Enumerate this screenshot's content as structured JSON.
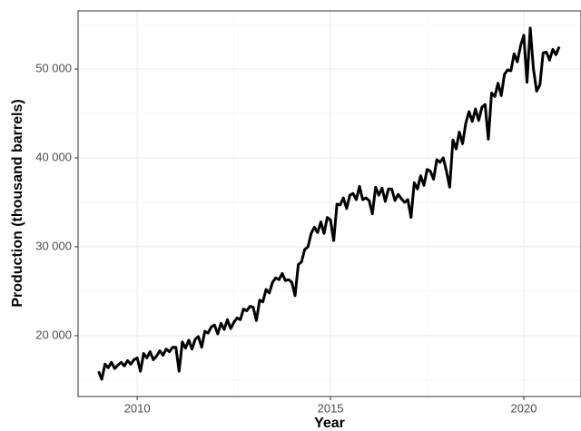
{
  "chart_data": {
    "type": "line",
    "x_label": "Year",
    "y_label": "Production (thousand barrels)",
    "x": [
      2009,
      2009.083,
      2009.167,
      2009.25,
      2009.333,
      2009.417,
      2009.5,
      2009.583,
      2009.667,
      2009.75,
      2009.833,
      2009.917,
      2010,
      2010.083,
      2010.167,
      2010.25,
      2010.333,
      2010.417,
      2010.5,
      2010.583,
      2010.667,
      2010.75,
      2010.833,
      2010.917,
      2011,
      2011.083,
      2011.167,
      2011.25,
      2011.333,
      2011.417,
      2011.5,
      2011.583,
      2011.667,
      2011.75,
      2011.833,
      2011.917,
      2012,
      2012.083,
      2012.167,
      2012.25,
      2012.333,
      2012.417,
      2012.5,
      2012.583,
      2012.667,
      2012.75,
      2012.833,
      2012.917,
      2013,
      2013.083,
      2013.167,
      2013.25,
      2013.333,
      2013.417,
      2013.5,
      2013.583,
      2013.667,
      2013.75,
      2013.833,
      2013.917,
      2014,
      2014.083,
      2014.167,
      2014.25,
      2014.333,
      2014.417,
      2014.5,
      2014.583,
      2014.667,
      2014.75,
      2014.833,
      2014.917,
      2015,
      2015.083,
      2015.167,
      2015.25,
      2015.333,
      2015.417,
      2015.5,
      2015.583,
      2015.667,
      2015.75,
      2015.833,
      2015.917,
      2016,
      2016.083,
      2016.167,
      2016.25,
      2016.333,
      2016.417,
      2016.5,
      2016.583,
      2016.667,
      2016.75,
      2016.833,
      2016.917,
      2017,
      2017.083,
      2017.167,
      2017.25,
      2017.333,
      2017.417,
      2017.5,
      2017.583,
      2017.667,
      2017.75,
      2017.833,
      2017.917,
      2018,
      2018.083,
      2018.167,
      2018.25,
      2018.333,
      2018.417,
      2018.5,
      2018.583,
      2018.667,
      2018.75,
      2018.833,
      2018.917,
      2019,
      2019.083,
      2019.167,
      2019.25,
      2019.333,
      2019.417,
      2019.5,
      2019.583,
      2019.667,
      2019.75,
      2019.833,
      2019.917,
      2020,
      2020.083,
      2020.167,
      2020.25,
      2020.333,
      2020.417,
      2020.5,
      2020.583,
      2020.667,
      2020.75,
      2020.833,
      2020.917
    ],
    "values": [
      16000,
      15100,
      16800,
      16400,
      17000,
      16300,
      16700,
      17000,
      16600,
      17200,
      16800,
      17300,
      17500,
      16000,
      18000,
      17500,
      18200,
      17300,
      17700,
      18300,
      17800,
      18500,
      18200,
      18700,
      18700,
      16000,
      19300,
      18600,
      19500,
      18500,
      19600,
      19900,
      18700,
      20500,
      20300,
      21000,
      21200,
      20200,
      21400,
      20700,
      21800,
      20800,
      21500,
      22000,
      21800,
      23000,
      22800,
      23300,
      23200,
      21700,
      24000,
      23800,
      25200,
      24800,
      26000,
      26500,
      26300,
      27000,
      26200,
      26300,
      26000,
      24500,
      28000,
      28300,
      29700,
      30000,
      31500,
      32200,
      31600,
      32800,
      31500,
      33300,
      33000,
      30700,
      34800,
      34700,
      35500,
      34300,
      35800,
      36000,
      35300,
      36800,
      35300,
      35500,
      35200,
      33700,
      36700,
      35800,
      36600,
      35100,
      36500,
      36500,
      35200,
      35900,
      35400,
      35000,
      35300,
      33300,
      37200,
      36500,
      38000,
      36900,
      38700,
      38500,
      37600,
      39800,
      39500,
      40000,
      38500,
      36700,
      42000,
      41000,
      42900,
      41600,
      43900,
      45200,
      44100,
      45500,
      44200,
      45700,
      46000,
      42100,
      47300,
      46900,
      48400,
      47000,
      49400,
      49900,
      49800,
      51700,
      50800,
      52600,
      53800,
      48500,
      54600,
      50000,
      47500,
      48200,
      51800,
      51900,
      51000,
      52200,
      51600,
      52500
    ],
    "color": "#000000",
    "xlim": [
      2008.47,
      2021.48
    ],
    "ylim": [
      13160,
      56530
    ],
    "xticks": [
      2010,
      2015,
      2020
    ],
    "yticks": [
      {
        "value": 20000,
        "label": "20 000"
      },
      {
        "value": 30000,
        "label": "30 000"
      },
      {
        "value": 40000,
        "label": "40 000"
      },
      {
        "value": 50000,
        "label": "50 000"
      }
    ],
    "grid": true
  }
}
